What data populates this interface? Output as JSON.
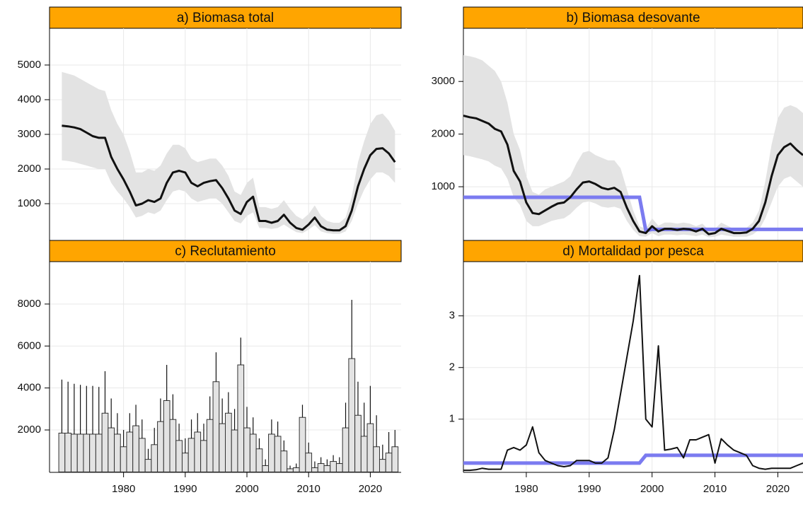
{
  "chart_data": [
    {
      "type": "line",
      "title": "a) Biomasa total",
      "x": [
        1970,
        1971,
        1972,
        1973,
        1974,
        1975,
        1976,
        1977,
        1978,
        1979,
        1980,
        1981,
        1982,
        1983,
        1984,
        1985,
        1986,
        1987,
        1988,
        1989,
        1990,
        1991,
        1992,
        1993,
        1994,
        1995,
        1996,
        1997,
        1998,
        1999,
        2000,
        2001,
        2002,
        2003,
        2004,
        2005,
        2006,
        2007,
        2008,
        2009,
        2010,
        2011,
        2012,
        2013,
        2014,
        2015,
        2016,
        2017,
        2018,
        2019,
        2020,
        2021,
        2022,
        2023,
        2024
      ],
      "values": [
        3250,
        3230,
        3200,
        3150,
        3050,
        2950,
        2900,
        2900,
        2350,
        2000,
        1700,
        1350,
        950,
        1000,
        1100,
        1050,
        1150,
        1600,
        1900,
        1950,
        1900,
        1600,
        1500,
        1600,
        1650,
        1680,
        1450,
        1150,
        800,
        700,
        1050,
        1200,
        500,
        500,
        450,
        500,
        680,
        450,
        300,
        250,
        400,
        600,
        350,
        250,
        230,
        230,
        350,
        800,
        1500,
        2000,
        2400,
        2580,
        2600,
        2450,
        2200
      ],
      "upper": [
        4800,
        4750,
        4700,
        4600,
        4500,
        4400,
        4300,
        4250,
        3700,
        3300,
        3000,
        2500,
        1900,
        1900,
        2000,
        1950,
        2100,
        2450,
        2700,
        2700,
        2600,
        2300,
        2200,
        2250,
        2300,
        2300,
        2100,
        1800,
        1350,
        1250,
        1600,
        1750,
        900,
        900,
        850,
        900,
        1100,
        850,
        650,
        550,
        700,
        950,
        650,
        500,
        450,
        450,
        600,
        1200,
        2200,
        2800,
        3300,
        3550,
        3600,
        3400,
        3100
      ],
      "lower": [
        2250,
        2230,
        2200,
        2150,
        2100,
        2050,
        2000,
        2000,
        1600,
        1350,
        1150,
        900,
        600,
        650,
        750,
        700,
        800,
        1100,
        1350,
        1400,
        1350,
        1150,
        1050,
        1100,
        1150,
        1150,
        1000,
        750,
        500,
        430,
        650,
        750,
        300,
        300,
        270,
        300,
        400,
        280,
        180,
        150,
        250,
        380,
        200,
        150,
        130,
        130,
        200,
        500,
        1000,
        1400,
        1700,
        1900,
        1900,
        1800,
        1600
      ],
      "color": "#111111",
      "band_color": "#e3e3e3",
      "xlim": [
        1968,
        2025
      ],
      "xticks": [
        1980,
        1990,
        2000,
        2010,
        2020
      ],
      "x_tick_labels": false,
      "ylim": [
        -60,
        6060
      ],
      "yticks": [
        1000,
        2000,
        3000,
        4000,
        5000
      ],
      "grid": true
    },
    {
      "type": "line",
      "title": "b) Biomasa desovante",
      "x": [
        1970,
        1971,
        1972,
        1973,
        1974,
        1975,
        1976,
        1977,
        1978,
        1979,
        1980,
        1981,
        1982,
        1983,
        1984,
        1985,
        1986,
        1987,
        1988,
        1989,
        1990,
        1991,
        1992,
        1993,
        1994,
        1995,
        1996,
        1997,
        1998,
        1999,
        2000,
        2001,
        2002,
        2003,
        2004,
        2005,
        2006,
        2007,
        2008,
        2009,
        2010,
        2011,
        2012,
        2013,
        2014,
        2015,
        2016,
        2017,
        2018,
        2019,
        2020,
        2021,
        2022,
        2023,
        2024
      ],
      "values": [
        2350,
        2320,
        2300,
        2250,
        2200,
        2100,
        2050,
        1800,
        1300,
        1100,
        700,
        500,
        480,
        550,
        620,
        680,
        700,
        800,
        950,
        1080,
        1100,
        1050,
        980,
        950,
        980,
        900,
        600,
        350,
        150,
        120,
        250,
        150,
        200,
        200,
        180,
        200,
        190,
        150,
        200,
        100,
        120,
        200,
        160,
        120,
        120,
        130,
        200,
        350,
        700,
        1200,
        1600,
        1750,
        1820,
        1700,
        1600
      ],
      "upper": [
        3500,
        3480,
        3450,
        3400,
        3300,
        3200,
        3000,
        2600,
        2000,
        1700,
        1200,
        900,
        850,
        950,
        1000,
        1050,
        1100,
        1200,
        1450,
        1650,
        1680,
        1600,
        1550,
        1500,
        1500,
        1350,
        950,
        550,
        250,
        200,
        400,
        260,
        320,
        320,
        300,
        320,
        300,
        250,
        300,
        180,
        200,
        320,
        260,
        200,
        200,
        220,
        320,
        550,
        1100,
        1800,
        2300,
        2500,
        2550,
        2500,
        2400
      ],
      "lower": [
        1600,
        1580,
        1550,
        1520,
        1480,
        1400,
        1350,
        1150,
        800,
        650,
        350,
        250,
        250,
        300,
        350,
        380,
        400,
        480,
        600,
        700,
        720,
        680,
        620,
        600,
        620,
        580,
        350,
        180,
        60,
        50,
        120,
        60,
        90,
        90,
        80,
        90,
        80,
        60,
        90,
        40,
        50,
        90,
        70,
        50,
        50,
        50,
        90,
        180,
        400,
        700,
        1000,
        1150,
        1200,
        1100,
        1000
      ],
      "reference": [
        800,
        800,
        800,
        800,
        800,
        800,
        800,
        800,
        800,
        800,
        800,
        800,
        800,
        800,
        800,
        800,
        800,
        800,
        800,
        800,
        800,
        800,
        800,
        800,
        800,
        800,
        800,
        800,
        800,
        170,
        190,
        190,
        190,
        190,
        190,
        190,
        190,
        190,
        190,
        190,
        190,
        190,
        190,
        190,
        190,
        190,
        190,
        190,
        190,
        190,
        190,
        190,
        190,
        190,
        190
      ],
      "color": "#111111",
      "band_color": "#e3e3e3",
      "reference_color": "#7b7bf0",
      "xlim": [
        1970,
        2024
      ],
      "xticks": [
        1980,
        1990,
        2000,
        2010,
        2020
      ],
      "x_tick_labels": false,
      "ylim": [
        -20,
        4010
      ],
      "yticks": [
        1000,
        2000,
        3000
      ],
      "grid": true
    },
    {
      "type": "bar",
      "title": "c) Reclutamiento",
      "x": [
        1970,
        1971,
        1972,
        1973,
        1974,
        1975,
        1976,
        1977,
        1978,
        1979,
        1980,
        1981,
        1982,
        1983,
        1984,
        1985,
        1986,
        1987,
        1988,
        1989,
        1990,
        1991,
        1992,
        1993,
        1994,
        1995,
        1996,
        1997,
        1998,
        1999,
        2000,
        2001,
        2002,
        2003,
        2004,
        2005,
        2006,
        2007,
        2008,
        2009,
        2010,
        2011,
        2012,
        2013,
        2014,
        2015,
        2016,
        2017,
        2018,
        2019,
        2020,
        2021,
        2022,
        2023,
        2024
      ],
      "values": [
        1850,
        1850,
        1800,
        1800,
        1800,
        1800,
        1800,
        2800,
        2100,
        1800,
        1200,
        1900,
        2200,
        1600,
        600,
        1300,
        2400,
        3400,
        2500,
        1500,
        900,
        1600,
        1900,
        1500,
        2500,
        4300,
        2300,
        2800,
        2000,
        5100,
        2100,
        1800,
        1100,
        300,
        1800,
        1700,
        1000,
        150,
        200,
        2600,
        900,
        200,
        400,
        300,
        500,
        400,
        2100,
        5400,
        2700,
        1700,
        2300,
        1200,
        600,
        900,
        1200
      ],
      "upper": [
        4400,
        4300,
        4200,
        4150,
        4100,
        4100,
        4050,
        4800,
        3500,
        2800,
        2000,
        2800,
        3200,
        2500,
        1100,
        2100,
        3500,
        5100,
        3700,
        2300,
        1600,
        2500,
        2800,
        2300,
        3600,
        5700,
        3500,
        3800,
        3000,
        6400,
        3100,
        2600,
        1600,
        600,
        2500,
        2400,
        1500,
        300,
        400,
        3200,
        1400,
        500,
        700,
        600,
        800,
        700,
        3300,
        8200,
        4300,
        3300,
        4100,
        2700,
        1300,
        1900,
        2000
      ],
      "color": "#e3e3e3",
      "xlim": [
        1968,
        2025
      ],
      "xticks": [
        1980,
        1990,
        2000,
        2010,
        2020
      ],
      "x_tick_labels": true,
      "ylim": [
        -20,
        10020
      ],
      "yticks": [
        2000,
        4000,
        6000,
        8000
      ],
      "grid": true
    },
    {
      "type": "line",
      "title": "d) Mortalidad por pesca",
      "x": [
        1970,
        1971,
        1972,
        1973,
        1974,
        1975,
        1976,
        1977,
        1978,
        1979,
        1980,
        1981,
        1982,
        1983,
        1984,
        1985,
        1986,
        1987,
        1988,
        1989,
        1990,
        1991,
        1992,
        1993,
        1994,
        1995,
        1996,
        1997,
        1998,
        1999,
        2000,
        2001,
        2002,
        2003,
        2004,
        2005,
        2006,
        2007,
        2008,
        2009,
        2010,
        2011,
        2012,
        2013,
        2014,
        2015,
        2016,
        2017,
        2018,
        2019,
        2020,
        2021,
        2022,
        2023,
        2024
      ],
      "values": [
        0.01,
        0.01,
        0.02,
        0.05,
        0.03,
        0.03,
        0.03,
        0.4,
        0.45,
        0.4,
        0.5,
        0.85,
        0.35,
        0.2,
        0.15,
        0.1,
        0.08,
        0.1,
        0.2,
        0.2,
        0.2,
        0.15,
        0.15,
        0.25,
        0.8,
        1.5,
        2.2,
        2.9,
        3.78,
        1.0,
        0.85,
        2.42,
        0.4,
        0.42,
        0.45,
        0.25,
        0.6,
        0.6,
        0.65,
        0.7,
        0.15,
        0.62,
        0.5,
        0.4,
        0.35,
        0.3,
        0.1,
        0.05,
        0.03,
        0.05,
        0.05,
        0.05,
        0.05,
        0.1,
        0.15
      ],
      "reference": [
        0.15,
        0.15,
        0.15,
        0.15,
        0.15,
        0.15,
        0.15,
        0.15,
        0.15,
        0.15,
        0.15,
        0.15,
        0.15,
        0.15,
        0.15,
        0.15,
        0.15,
        0.15,
        0.15,
        0.15,
        0.15,
        0.15,
        0.15,
        0.15,
        0.15,
        0.15,
        0.15,
        0.15,
        0.15,
        0.3,
        0.3,
        0.3,
        0.3,
        0.3,
        0.3,
        0.3,
        0.3,
        0.3,
        0.3,
        0.3,
        0.3,
        0.3,
        0.3,
        0.3,
        0.3,
        0.3,
        0.3,
        0.3,
        0.3,
        0.3,
        0.3,
        0.3,
        0.3,
        0.3,
        0.3
      ],
      "color": "#111111",
      "reference_color": "#7b7bf0",
      "xlim": [
        1970,
        2024
      ],
      "xticks": [
        1980,
        1990,
        2000,
        2010,
        2020
      ],
      "x_tick_labels": true,
      "ylim": [
        -0.03,
        4.05
      ],
      "yticks": [
        1,
        2,
        3
      ],
      "grid": true
    }
  ]
}
